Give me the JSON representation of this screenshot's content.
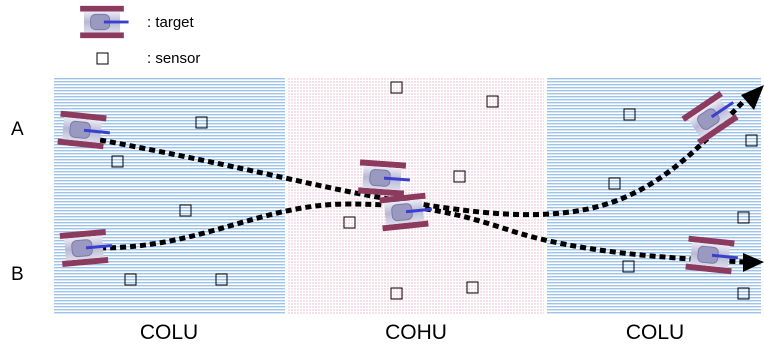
{
  "legend": {
    "target_label": ": target",
    "sensor_label": ": sensor"
  },
  "row_labels": {
    "a": "A",
    "b": "B"
  },
  "zones": [
    {
      "id": "left",
      "label": "COLU",
      "style": "striped-blue"
    },
    {
      "id": "middle",
      "label": "COHU",
      "style": "dotted-pink"
    },
    {
      "id": "right",
      "label": "COLU",
      "style": "striped-blue"
    }
  ],
  "colors": {
    "stripe_blue": "#9fc4e8",
    "dot_pink": "#e7b3c8",
    "tank_track": "#8c3a5e",
    "tank_body": "#c9c9df",
    "tank_barrel": "#3a3fd0",
    "path": "#000000",
    "sensor": "#000000"
  },
  "icons": {
    "target": "tank-icon",
    "sensor": "square-icon",
    "path_arrow": "arrowhead-icon"
  }
}
